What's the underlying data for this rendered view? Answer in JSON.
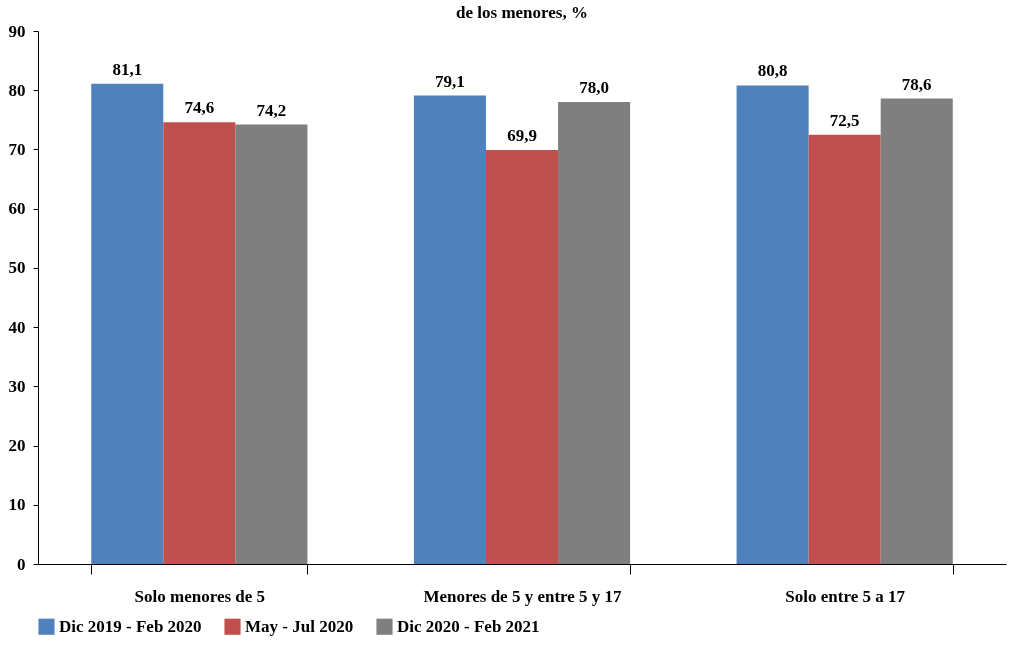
{
  "chart_data": {
    "type": "bar",
    "title": "de los menores, %",
    "categories": [
      "Solo menores de 5",
      "Menores de 5 y entre 5 y 17",
      "Solo entre 5 a 17"
    ],
    "series": [
      {
        "name": "Dic 2019 - Feb 2020",
        "color": "#4f81bd",
        "values": [
          81.1,
          79.1,
          80.8
        ],
        "value_labels": [
          "81,1",
          "79,1",
          "80,8"
        ]
      },
      {
        "name": "May - Jul 2020",
        "color": "#c0504d",
        "values": [
          74.6,
          69.9,
          72.5
        ],
        "value_labels": [
          "74,6",
          "69,9",
          "72,5"
        ]
      },
      {
        "name": "Dic 2020 - Feb 2021",
        "color": "#7f7f7f",
        "values": [
          74.2,
          78.0,
          78.6
        ],
        "value_labels": [
          "74,2",
          "78,0",
          "78,6"
        ]
      }
    ],
    "ylim": [
      0,
      90
    ],
    "yticks": [
      0,
      10,
      20,
      30,
      40,
      50,
      60,
      70,
      80,
      90
    ],
    "grid": false,
    "legend": "bottom"
  }
}
